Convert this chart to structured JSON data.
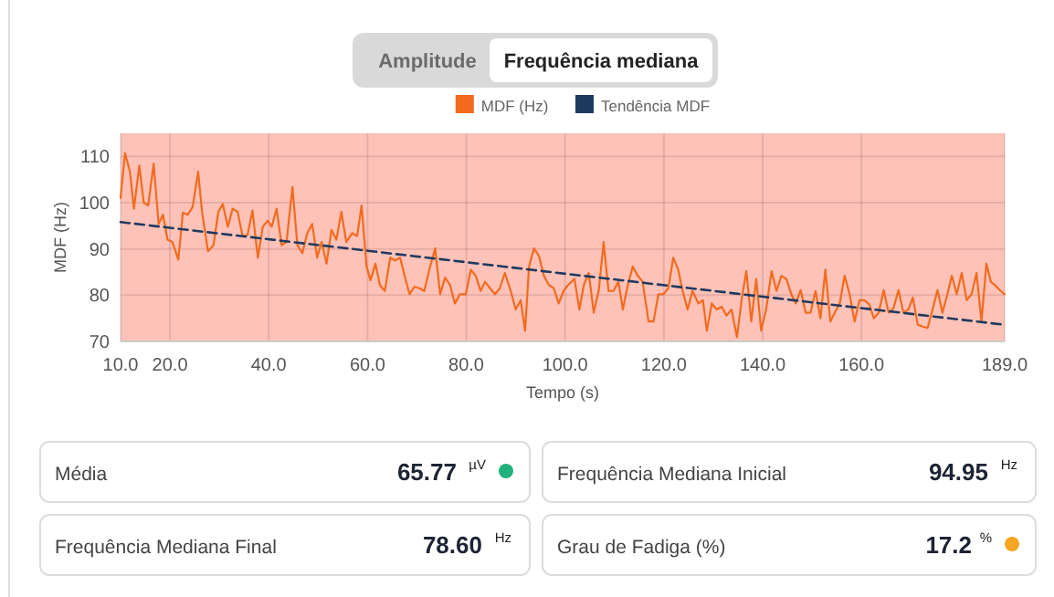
{
  "chart_data": [
    {
      "type": "line",
      "xlabel": "Tempo (s)",
      "ylabel": "MDF (Hz)",
      "annotations": [
        "Amplitude",
        "Frequência mediana"
      ],
      "xlim": [
        10,
        189
      ],
      "ylim": [
        70,
        115
      ],
      "xticks": [
        {
          "value": 10,
          "label": "10.0"
        },
        {
          "value": 20,
          "label": "20.0"
        },
        {
          "value": 40,
          "label": "40.0"
        },
        {
          "value": 60,
          "label": "60.0"
        },
        {
          "value": 80,
          "label": "80.0"
        },
        {
          "value": 100,
          "label": "100.0"
        },
        {
          "value": 120,
          "label": "120.0"
        },
        {
          "value": 140,
          "label": "140.0"
        },
        {
          "value": 160,
          "label": "160.0"
        },
        {
          "value": 189,
          "label": "189.0"
        }
      ],
      "yticks": [
        70,
        80,
        90,
        100,
        110
      ],
      "grid": true,
      "legend": "top",
      "bands": [
        {
          "axis": "y",
          "from": 70,
          "to": 115,
          "color": "#ffc2b8"
        }
      ],
      "series": [
        {
          "name": "MDF (Hz)",
          "color": "#f26b1d",
          "line_style": "solid",
          "x": [
            10,
            10.9,
            11.9,
            12.7,
            13.8,
            14.7,
            15.6,
            16.7,
            17.7,
            18.6,
            19.5,
            20.5,
            21.7,
            22.6,
            23.6,
            24.6,
            25.7,
            26.5,
            27.7,
            28.8,
            29.8,
            30.7,
            31.7,
            32.7,
            33.7,
            34.7,
            35.7,
            36.7,
            37.8,
            38.8,
            39.8,
            40.6,
            41.6,
            42.6,
            43.6,
            44.8,
            45.8,
            46.8,
            47.8,
            48.8,
            49.8,
            50.7,
            51.7,
            52.7,
            53.7,
            54.7,
            55.7,
            56.9,
            57.9,
            58.8,
            59.8,
            60.6,
            61.6,
            62.5,
            63.5,
            64.6,
            65.6,
            66.6,
            67.5,
            68.5,
            69.5,
            70.5,
            71.5,
            72.5,
            73.7,
            74.7,
            75.7,
            76.7,
            77.7,
            78.7,
            79.9,
            80.9,
            81.9,
            82.9,
            83.8,
            84.8,
            85.8,
            86.8,
            87.8,
            89,
            90,
            91,
            91.9,
            92.7,
            93.7,
            94.7,
            95.7,
            96.7,
            97.7,
            98.7,
            99.7,
            100.6,
            101.9,
            102.9,
            103.8,
            104.8,
            105.8,
            106.8,
            107.8,
            108.8,
            109.8,
            110.8,
            111.7,
            112.7,
            113.7,
            114.7,
            115.7,
            116.9,
            117.9,
            118.9,
            119.9,
            120.9,
            121.9,
            122.9,
            123.8,
            124.8,
            125.8,
            127,
            127.9,
            128.7,
            129.7,
            130.7,
            131.7,
            132.7,
            133.7,
            134.8,
            135.8,
            136.7,
            137.7,
            138.7,
            139.7,
            140.7,
            141.8,
            142.8,
            143.8,
            144.8,
            145.8,
            146.7,
            147.7,
            148.7,
            149.7,
            150.7,
            151.7,
            152.7,
            153.7,
            154.6,
            155.6,
            156.6,
            157.6,
            158.6,
            159.6,
            160.6,
            161.6,
            162.5,
            163.5,
            164.5,
            165.5,
            166.5,
            167.5,
            168.5,
            169.5,
            170.4,
            171.4,
            172.4,
            173.4,
            174.4,
            175.4,
            176.4,
            177.4,
            178.3,
            179.3,
            180.3,
            181.3,
            182.3,
            183.3,
            184.3,
            185.3,
            186.2,
            187.2,
            188.2,
            189
          ],
          "values": [
            101,
            110.7,
            106.7,
            98.7,
            108,
            100,
            99.4,
            108.4,
            95.4,
            97.4,
            92,
            91.5,
            87.7,
            97.8,
            97.4,
            99.1,
            106.7,
            98,
            89.5,
            90.8,
            98,
            99.7,
            94.8,
            98.7,
            98,
            92.8,
            93,
            98.3,
            88.1,
            94.8,
            96.1,
            94.8,
            98.7,
            90.8,
            91.5,
            103.4,
            90.8,
            89.1,
            93.4,
            95.4,
            88.1,
            91.5,
            86.8,
            94.1,
            92,
            98,
            91.5,
            93.4,
            92.8,
            99.4,
            86.2,
            83.2,
            86.8,
            82.2,
            80.9,
            88.1,
            87.5,
            88.1,
            84.2,
            80.2,
            81.8,
            81.5,
            80.9,
            85.5,
            90.1,
            80.2,
            83.8,
            82.2,
            78.2,
            80.2,
            80.2,
            85.5,
            84.2,
            80.9,
            82.9,
            81.5,
            80.2,
            81.5,
            84.8,
            80.9,
            76.9,
            78.9,
            72.3,
            86.2,
            90.1,
            88.5,
            84.2,
            82.2,
            81.5,
            78.2,
            80.9,
            82.2,
            83.5,
            76.9,
            82.2,
            84.8,
            76.2,
            80.9,
            91.5,
            80.9,
            80.9,
            82.9,
            76.9,
            82.2,
            86.2,
            84.2,
            82.9,
            74.3,
            74.3,
            80.2,
            80.2,
            81.5,
            88.1,
            85.5,
            80.9,
            76.9,
            80.9,
            78.2,
            78.9,
            72.3,
            78.2,
            76.9,
            77.5,
            75.6,
            76.9,
            70.9,
            79.5,
            85.2,
            74.3,
            83.5,
            72.3,
            76.9,
            85.2,
            80.9,
            84.2,
            83.5,
            80.2,
            78.2,
            81.1,
            76.2,
            76.2,
            80.9,
            75,
            85.5,
            74.3,
            76.2,
            78.2,
            84.2,
            80.2,
            74.3,
            78.9,
            78.9,
            78,
            75,
            76.2,
            81.1,
            76.2,
            77.2,
            81.1,
            76.2,
            76.9,
            79.5,
            73.6,
            73.2,
            72.9,
            76.9,
            81.1,
            76.2,
            80.2,
            84.2,
            80.2,
            84.8,
            78.9,
            80.2,
            84.8,
            74.3,
            86.8,
            82.9,
            82,
            80.9,
            80.2
          ]
        },
        {
          "name": "Tendência MDF",
          "color": "#1f3a5f",
          "line_style": "dashed",
          "x": [
            10,
            189
          ],
          "values": [
            95.8,
            73.6
          ]
        }
      ]
    },
    {
      "type": "other",
      "annotations": [
        "Média",
        "65.77",
        "µV",
        "Frequência Mediana Inicial",
        "94.95",
        "Hz",
        "Frequência Mediana Final",
        "78.60",
        "Hz",
        "Grau de Fadiga (%)",
        "17.2",
        "%"
      ],
      "colors": [
        "#22b07d",
        null,
        null,
        "#f5a623"
      ]
    }
  ]
}
